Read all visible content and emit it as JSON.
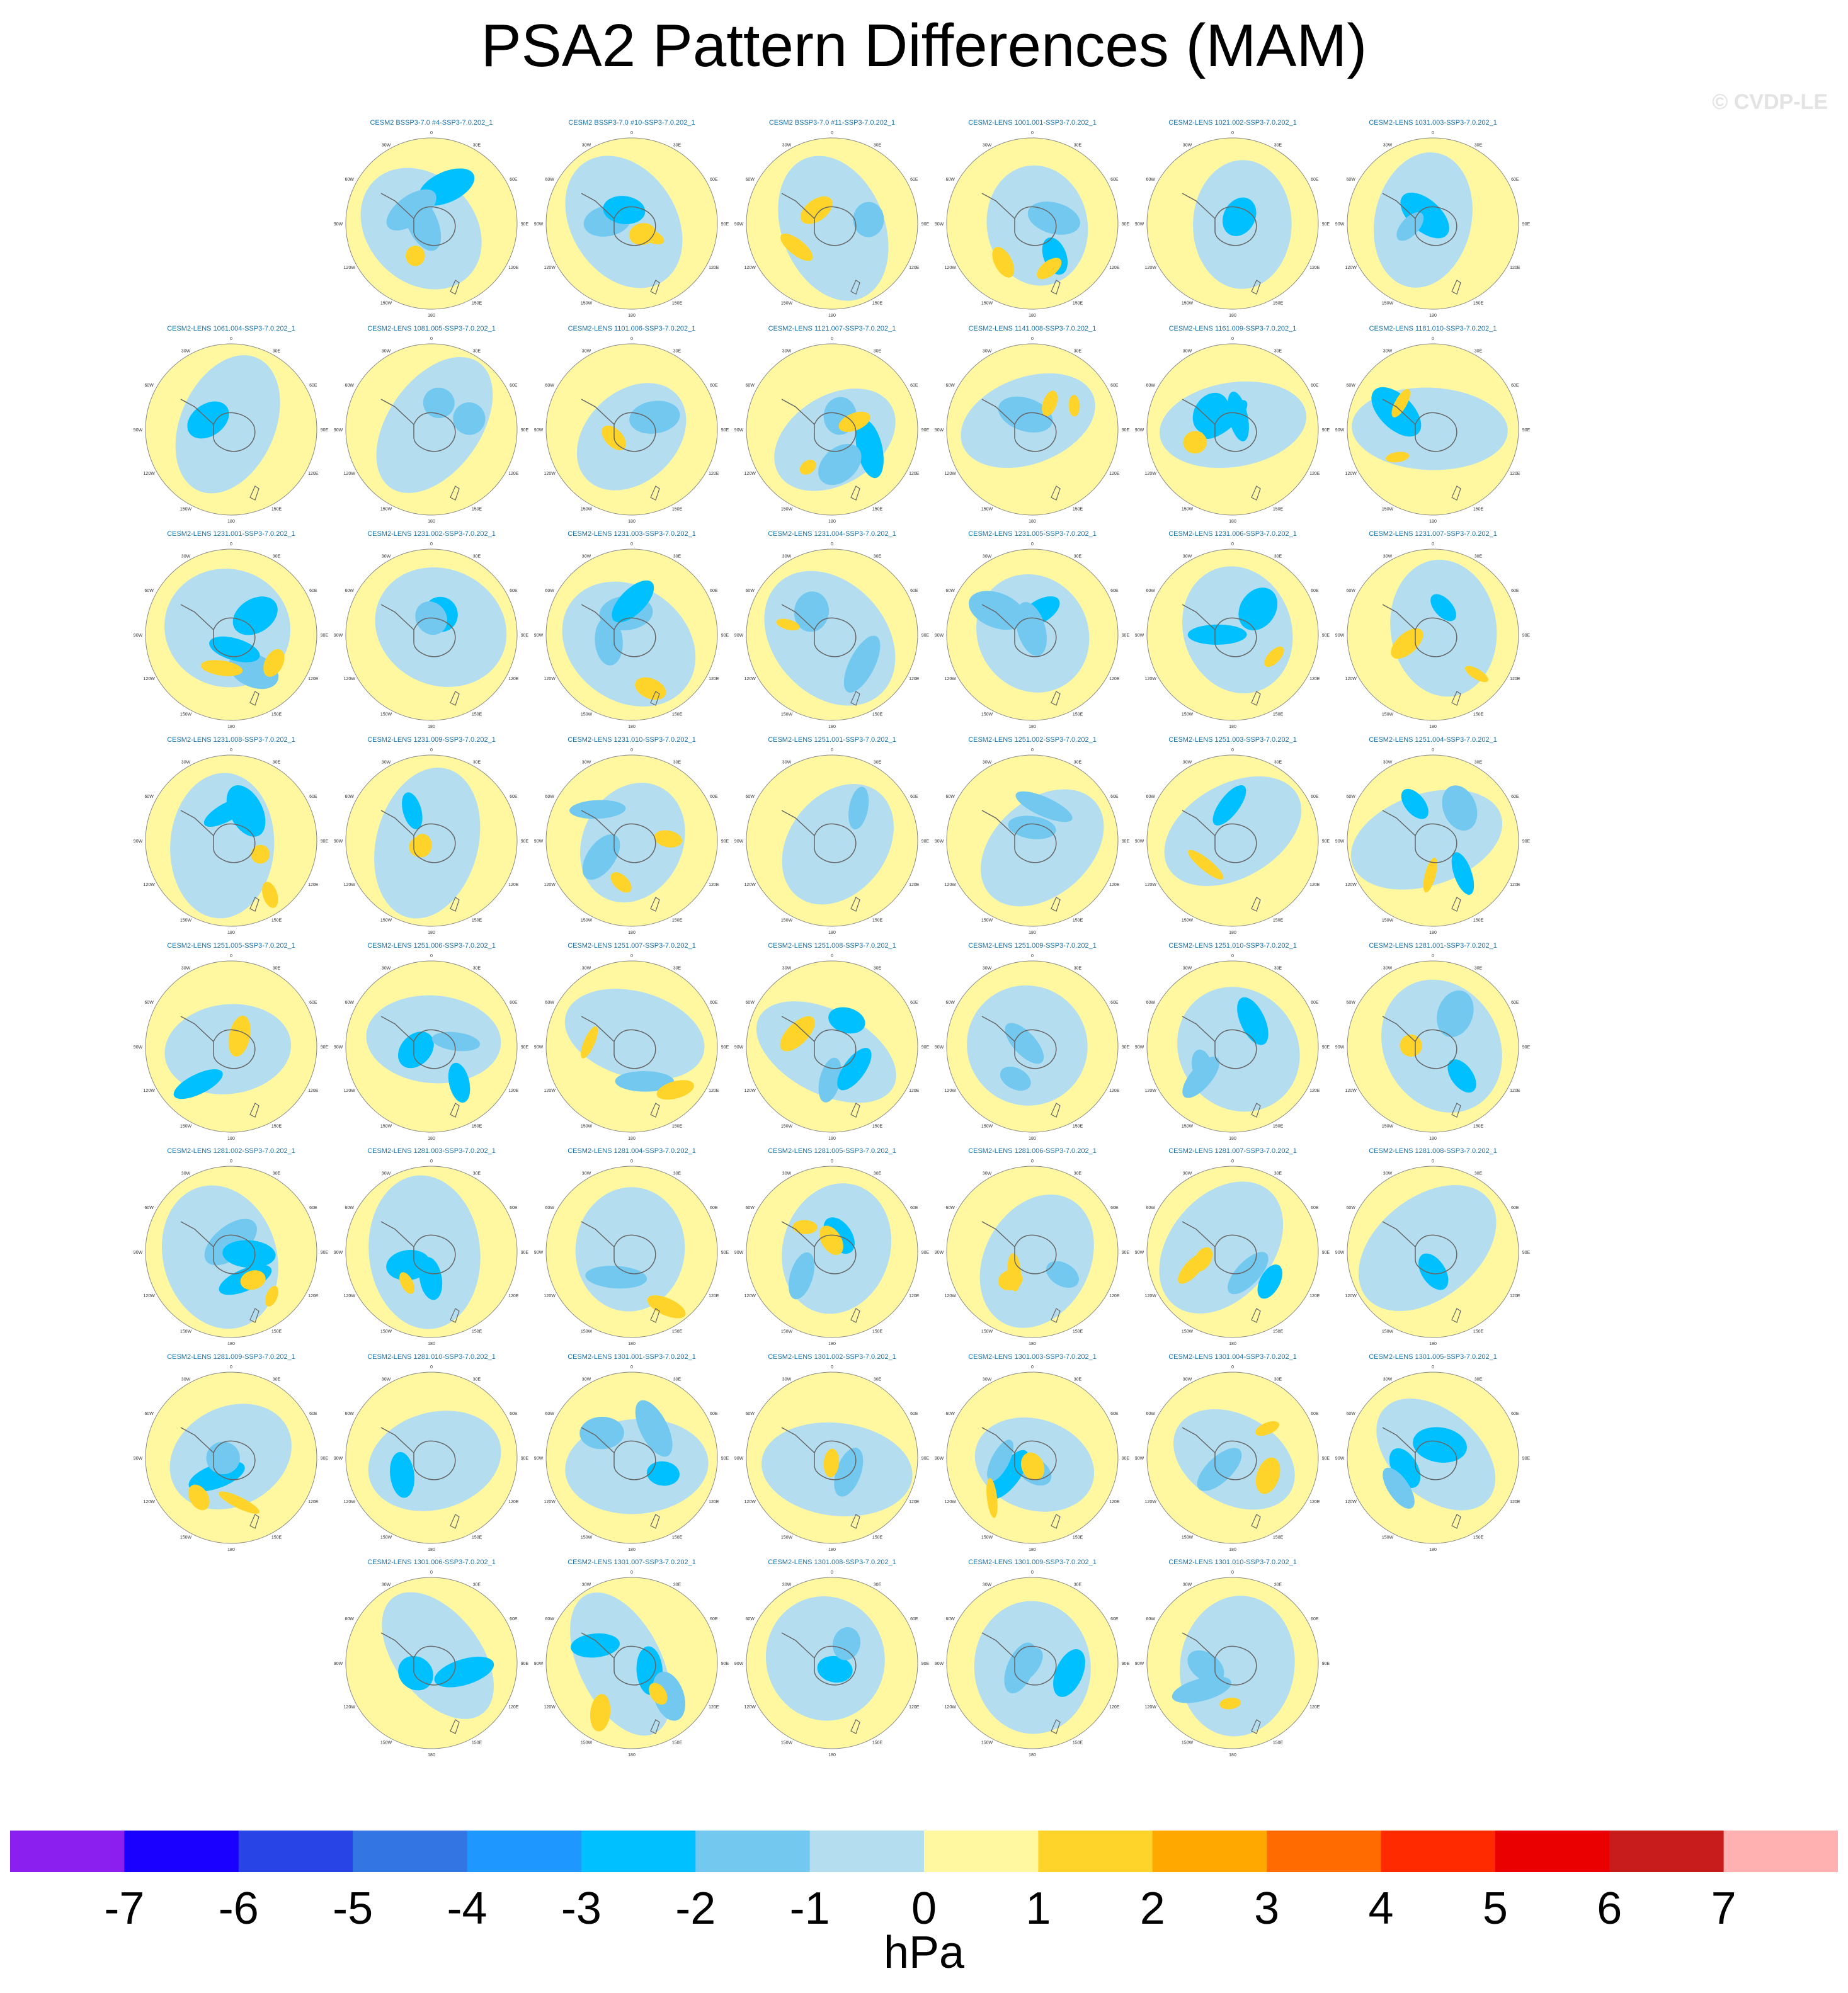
{
  "title": "PSA2 Pattern Differences (MAM)",
  "copyright": "© CVDP-LE",
  "chart_data": {
    "type": "heatmap",
    "title": "PSA2 Pattern Differences (MAM)",
    "projection": "south polar stereographic",
    "map_labels": {
      "lon_top": "0",
      "lon_bottom": "180",
      "lon_upper_left": "30W",
      "lon_upper_right": "30E",
      "lon_left_upper": "60W",
      "lon_right_upper": "60E",
      "lon_left": "90W",
      "lon_right": "90E",
      "lon_left_lower": "120W",
      "lon_right_lower": "120E",
      "lon_lower_left": "150W",
      "lon_lower_right": "150E"
    },
    "panels": [
      "CESM2 BSSP3-7.0 #4-SSP3-7.0.202_1",
      "CESM2 BSSP3-7.0 #10-SSP3-7.0.202_1",
      "CESM2 BSSP3-7.0 #11-SSP3-7.0.202_1",
      "CESM2-LENS 1001.001-SSP3-7.0.202_1",
      "CESM2-LENS 1021.002-SSP3-7.0.202_1",
      "CESM2-LENS 1031.003-SSP3-7.0.202_1",
      "CESM2-LENS 1061.004-SSP3-7.0.202_1",
      "CESM2-LENS 1081.005-SSP3-7.0.202_1",
      "CESM2-LENS 1101.006-SSP3-7.0.202_1",
      "CESM2-LENS 1121.007-SSP3-7.0.202_1",
      "CESM2-LENS 1141.008-SSP3-7.0.202_1",
      "CESM2-LENS 1161.009-SSP3-7.0.202_1",
      "CESM2-LENS 1181.010-SSP3-7.0.202_1",
      "CESM2-LENS 1231.001-SSP3-7.0.202_1",
      "CESM2-LENS 1231.002-SSP3-7.0.202_1",
      "CESM2-LENS 1231.003-SSP3-7.0.202_1",
      "CESM2-LENS 1231.004-SSP3-7.0.202_1",
      "CESM2-LENS 1231.005-SSP3-7.0.202_1",
      "CESM2-LENS 1231.006-SSP3-7.0.202_1",
      "CESM2-LENS 1231.007-SSP3-7.0.202_1",
      "CESM2-LENS 1231.008-SSP3-7.0.202_1",
      "CESM2-LENS 1231.009-SSP3-7.0.202_1",
      "CESM2-LENS 1231.010-SSP3-7.0.202_1",
      "CESM2-LENS 1251.001-SSP3-7.0.202_1",
      "CESM2-LENS 1251.002-SSP3-7.0.202_1",
      "CESM2-LENS 1251.003-SSP3-7.0.202_1",
      "CESM2-LENS 1251.004-SSP3-7.0.202_1",
      "CESM2-LENS 1251.005-SSP3-7.0.202_1",
      "CESM2-LENS 1251.006-SSP3-7.0.202_1",
      "CESM2-LENS 1251.007-SSP3-7.0.202_1",
      "CESM2-LENS 1251.008-SSP3-7.0.202_1",
      "CESM2-LENS 1251.009-SSP3-7.0.202_1",
      "CESM2-LENS 1251.010-SSP3-7.0.202_1",
      "CESM2-LENS 1281.001-SSP3-7.0.202_1",
      "CESM2-LENS 1281.002-SSP3-7.0.202_1",
      "CESM2-LENS 1281.003-SSP3-7.0.202_1",
      "CESM2-LENS 1281.004-SSP3-7.0.202_1",
      "CESM2-LENS 1281.005-SSP3-7.0.202_1",
      "CESM2-LENS 1281.006-SSP3-7.0.202_1",
      "CESM2-LENS 1281.007-SSP3-7.0.202_1",
      "CESM2-LENS 1281.008-SSP3-7.0.202_1",
      "CESM2-LENS 1281.009-SSP3-7.0.202_1",
      "CESM2-LENS 1281.010-SSP3-7.0.202_1",
      "CESM2-LENS 1301.001-SSP3-7.0.202_1",
      "CESM2-LENS 1301.002-SSP3-7.0.202_1",
      "CESM2-LENS 1301.003-SSP3-7.0.202_1",
      "CESM2-LENS 1301.004-SSP3-7.0.202_1",
      "CESM2-LENS 1301.005-SSP3-7.0.202_1",
      "CESM2-LENS 1301.006-SSP3-7.0.202_1",
      "CESM2-LENS 1301.007-SSP3-7.0.202_1",
      "CESM2-LENS 1301.008-SSP3-7.0.202_1",
      "CESM2-LENS 1301.009-SSP3-7.0.202_1",
      "CESM2-LENS 1301.010-SSP3-7.0.202_1"
    ],
    "colorbar": {
      "units": "hPa",
      "tick_labels": [
        "-7",
        "-6",
        "-5",
        "-4",
        "-3",
        "-2",
        "-1",
        "0",
        "1",
        "2",
        "3",
        "4",
        "5",
        "6",
        "7"
      ],
      "colors": [
        "#8a1ff0",
        "#1a00ff",
        "#2844e6",
        "#3375e3",
        "#1e97ff",
        "#00c0ff",
        "#73c8f0",
        "#b4def0",
        "#fff8a0",
        "#ffd42a",
        "#ffa800",
        "#ff6b00",
        "#ff2a00",
        "#eb0000",
        "#c81c1c",
        "#ffb0b0"
      ]
    }
  }
}
